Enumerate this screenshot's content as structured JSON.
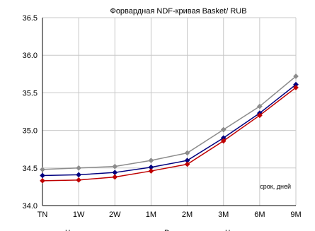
{
  "chart_data": {
    "type": "line",
    "title": "Форвардная NDF-кривая Basket/ RUB",
    "xlabel": "",
    "ylabel": "",
    "annotation": "срок, дней",
    "categories": [
      "TN",
      "1W",
      "2W",
      "1M",
      "2M",
      "3M",
      "6M",
      "9M"
    ],
    "ylim": [
      34.0,
      36.5
    ],
    "yticks": [
      "34.0",
      "34.5",
      "35.0",
      "35.5",
      "36.0",
      "36.5"
    ],
    "grid": true,
    "legend_labels": [
      "Ч",
      "В",
      "Ч"
    ],
    "series": [
      {
        "color": "#8c8c8c",
        "values": [
          34.48,
          34.5,
          34.52,
          34.6,
          34.7,
          35.01,
          35.32,
          35.72
        ]
      },
      {
        "color": "#00007f",
        "values": [
          34.4,
          34.41,
          34.44,
          34.51,
          34.6,
          34.9,
          35.23,
          35.61
        ]
      },
      {
        "color": "#bf0000",
        "values": [
          34.33,
          34.34,
          34.38,
          34.46,
          34.55,
          34.86,
          35.2,
          35.57
        ]
      }
    ]
  }
}
